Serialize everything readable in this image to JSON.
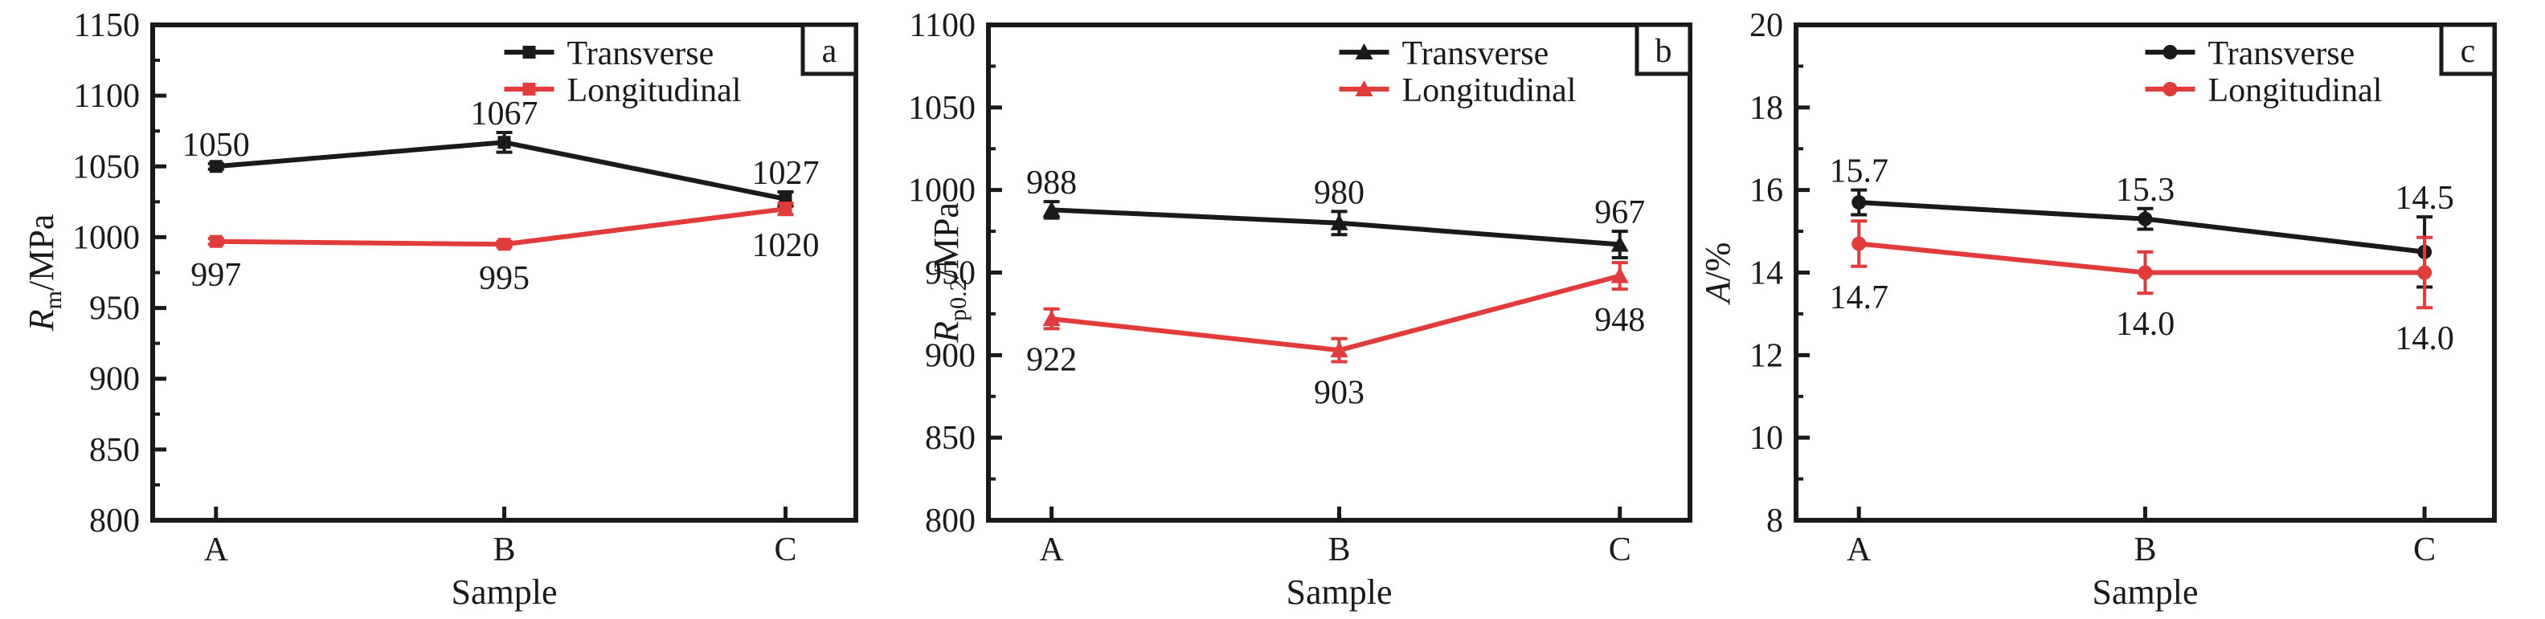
{
  "figure": {
    "background": "#ffffff",
    "ink_color": "#1a1a1a",
    "accent_red": "#e23b3b",
    "description": "Three-panel line chart of tensile properties (Rm, Rp0.2, A) of samples A, B, C in transverse and longitudinal directions"
  },
  "chart_data": [
    {
      "type": "line",
      "panel_label": "a",
      "xlabel": "Sample",
      "categories": [
        "A",
        "B",
        "C"
      ],
      "ylabel": {
        "symbol": "R",
        "subscript": "m",
        "rest": "/MPa"
      },
      "ylim": [
        800,
        1150
      ],
      "yticks": [
        1150,
        1100,
        1050,
        1000,
        950,
        900,
        850,
        800
      ],
      "yminor_step": 25,
      "grid": false,
      "legend_position": "top-center",
      "legend": [
        "Transverse",
        "Longitudinal"
      ],
      "series": [
        {
          "name": "Transverse",
          "color": "#1a1a1a",
          "marker": "square",
          "values": [
            1050,
            1067,
            1027
          ],
          "errors": [
            2,
            7,
            5
          ],
          "point_labels": [
            "1050",
            "1067",
            "1027"
          ],
          "label_side": "above"
        },
        {
          "name": "Longitudinal",
          "color": "#e23b3b",
          "marker": "square",
          "values": [
            997,
            995,
            1020
          ],
          "errors": [
            2,
            2,
            4
          ],
          "point_labels": [
            "997",
            "995",
            "1020"
          ],
          "label_side": "below"
        }
      ]
    },
    {
      "type": "line",
      "panel_label": "b",
      "xlabel": "Sample",
      "categories": [
        "A",
        "B",
        "C"
      ],
      "ylabel": {
        "symbol": "R",
        "subscript": "p0.2",
        "rest": "/MPa"
      },
      "ylim": [
        800,
        1100
      ],
      "yticks": [
        1100,
        1050,
        1000,
        950,
        900,
        850,
        800
      ],
      "yminor_step": 25,
      "grid": false,
      "legend_position": "top-center",
      "legend": [
        "Transverse",
        "Longitudinal"
      ],
      "series": [
        {
          "name": "Transverse",
          "color": "#1a1a1a",
          "marker": "triangle",
          "values": [
            988,
            980,
            967
          ],
          "errors": [
            5,
            7,
            8
          ],
          "point_labels": [
            "988",
            "980",
            "967"
          ],
          "label_side": "above"
        },
        {
          "name": "Longitudinal",
          "color": "#e23b3b",
          "marker": "triangle",
          "values": [
            922,
            903,
            948
          ],
          "errors": [
            6,
            7,
            8
          ],
          "point_labels": [
            "922",
            "903",
            "948"
          ],
          "label_side": "below"
        }
      ]
    },
    {
      "type": "line",
      "panel_label": "c",
      "xlabel": "Sample",
      "categories": [
        "A",
        "B",
        "C"
      ],
      "ylabel": {
        "symbol": "A",
        "subscript": "",
        "rest": "/%"
      },
      "ylim": [
        8,
        20
      ],
      "yticks": [
        20,
        18,
        16,
        14,
        12,
        10,
        8
      ],
      "yminor_step": 1,
      "grid": false,
      "legend_position": "top-center",
      "legend": [
        "Transverse",
        "Longitudinal"
      ],
      "series": [
        {
          "name": "Transverse",
          "color": "#1a1a1a",
          "marker": "circle",
          "values": [
            15.7,
            15.3,
            14.5
          ],
          "errors": [
            0.3,
            0.25,
            0.85
          ],
          "point_labels": [
            "15.7",
            "15.3",
            "14.5"
          ],
          "label_side": "above"
        },
        {
          "name": "Longitudinal",
          "color": "#e23b3b",
          "marker": "circle",
          "values": [
            14.7,
            14.0,
            14.0
          ],
          "errors": [
            0.55,
            0.5,
            0.85
          ],
          "point_labels": [
            "14.7",
            "14.0",
            "14.0"
          ],
          "label_side": "below"
        }
      ]
    }
  ]
}
